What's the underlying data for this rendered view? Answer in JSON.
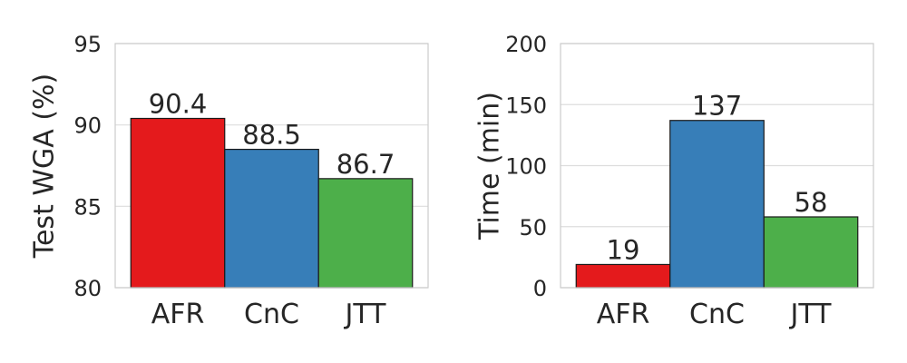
{
  "chart_data": [
    {
      "type": "bar",
      "categories": [
        "AFR",
        "CnC",
        "JTT"
      ],
      "values": [
        90.4,
        88.5,
        86.7
      ],
      "value_labels": [
        "90.4",
        "88.5",
        "86.7"
      ],
      "colors": [
        "#e41a1c",
        "#377eb8",
        "#4daf4a"
      ],
      "xlabel": "",
      "ylabel": "Test WGA (%)",
      "ylim": [
        80,
        95
      ],
      "yticks": [
        80,
        85,
        90,
        95
      ],
      "grid": true
    },
    {
      "type": "bar",
      "categories": [
        "AFR",
        "CnC",
        "JTT"
      ],
      "values": [
        19,
        137,
        58
      ],
      "value_labels": [
        "19",
        "137",
        "58"
      ],
      "colors": [
        "#e41a1c",
        "#377eb8",
        "#4daf4a"
      ],
      "xlabel": "",
      "ylabel": "Time (min)",
      "ylim": [
        0,
        200
      ],
      "yticks": [
        0,
        50,
        100,
        150,
        200
      ],
      "grid": true
    }
  ]
}
